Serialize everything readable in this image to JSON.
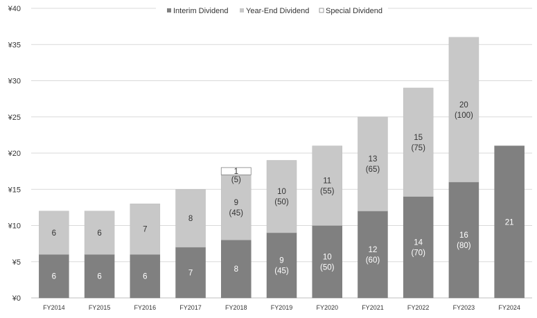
{
  "chart_data": {
    "type": "bar",
    "stacked": true,
    "categories": [
      "FY2014",
      "FY2015",
      "FY2016",
      "FY2017",
      "FY2018",
      "FY2019",
      "FY2020",
      "FY2021",
      "FY2022",
      "FY2023",
      "FY2024"
    ],
    "ylim": [
      0,
      40
    ],
    "yticks": [
      0,
      5,
      10,
      15,
      20,
      25,
      30,
      35,
      40
    ],
    "ytick_labels": [
      "¥0",
      "¥5",
      "¥10",
      "¥15",
      "¥20",
      "¥25",
      "¥30",
      "¥35",
      "¥40"
    ],
    "grid": true,
    "legend_position": "top",
    "series": [
      {
        "name": "Interim Dividend",
        "color": "#808080",
        "text_color": "#ffffff",
        "values": [
          6,
          6,
          6,
          7,
          8,
          9,
          10,
          12,
          14,
          16,
          21
        ],
        "labels": [
          [
            "6"
          ],
          [
            "6"
          ],
          [
            "6"
          ],
          [
            "7"
          ],
          [
            "8"
          ],
          [
            "9",
            "(45)"
          ],
          [
            "10",
            "(50)"
          ],
          [
            "12",
            "(60)"
          ],
          [
            "14",
            "(70)"
          ],
          [
            "16",
            "(80)"
          ],
          [
            "21"
          ]
        ]
      },
      {
        "name": "Year-End Dividend",
        "color": "#c8c8c8",
        "text_color": "#333333",
        "values": [
          6,
          6,
          7,
          8,
          9,
          10,
          11,
          13,
          15,
          20,
          0
        ],
        "labels": [
          [
            "6"
          ],
          [
            "6"
          ],
          [
            "7"
          ],
          [
            "8"
          ],
          [
            "9",
            "(45)"
          ],
          [
            "10",
            "(50)"
          ],
          [
            "11",
            "(55)"
          ],
          [
            "13",
            "(65)"
          ],
          [
            "15",
            "(75)"
          ],
          [
            "20",
            "(100)"
          ],
          []
        ]
      },
      {
        "name": "Special Dividend",
        "color": "#ffffff",
        "text_color": "#333333",
        "values": [
          0,
          0,
          0,
          0,
          1,
          0,
          0,
          0,
          0,
          0,
          0
        ],
        "labels": [
          [],
          [],
          [],
          [],
          [
            "1"
          ],
          [],
          [],
          [],
          [],
          [],
          []
        ]
      }
    ],
    "annotations": [
      {
        "category": "FY2018",
        "text": "(5)"
      }
    ]
  }
}
